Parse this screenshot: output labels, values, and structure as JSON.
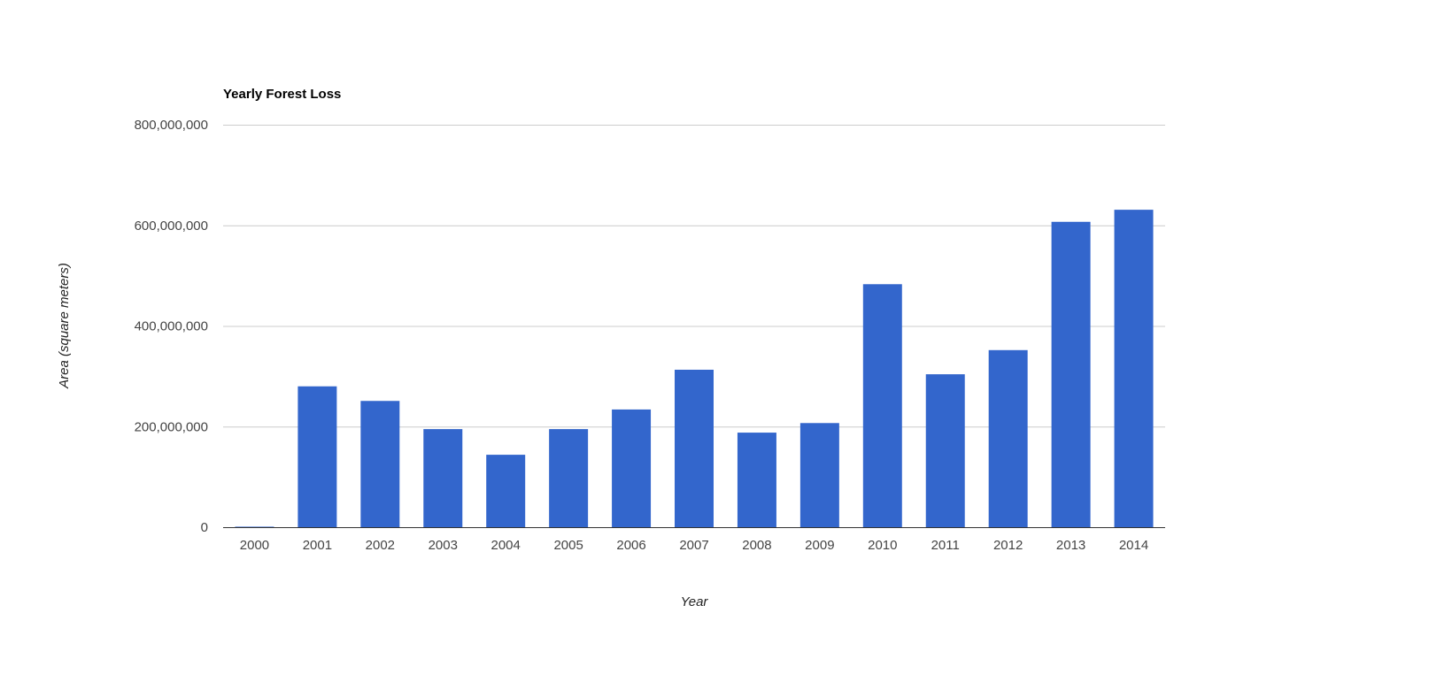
{
  "chart_data": {
    "type": "bar",
    "title": "Yearly Forest Loss",
    "xlabel": "Year",
    "ylabel": "Area (square meters)",
    "ylim": [
      0,
      800000000
    ],
    "yticks": [
      0,
      200000000,
      400000000,
      600000000,
      800000000
    ],
    "ytick_labels": [
      "0",
      "200,000,000",
      "400,000,000",
      "600,000,000",
      "800,000,000"
    ],
    "grid": true,
    "legend": "none",
    "bar_color": "#3366cc",
    "categories": [
      "2000",
      "2001",
      "2002",
      "2003",
      "2004",
      "2005",
      "2006",
      "2007",
      "2008",
      "2009",
      "2010",
      "2011",
      "2012",
      "2013",
      "2014"
    ],
    "values": [
      1000000,
      280000000,
      251000000,
      195000000,
      144000000,
      195000000,
      234000000,
      313000000,
      188000000,
      207000000,
      483000000,
      304000000,
      352000000,
      607000000,
      631000000
    ]
  }
}
